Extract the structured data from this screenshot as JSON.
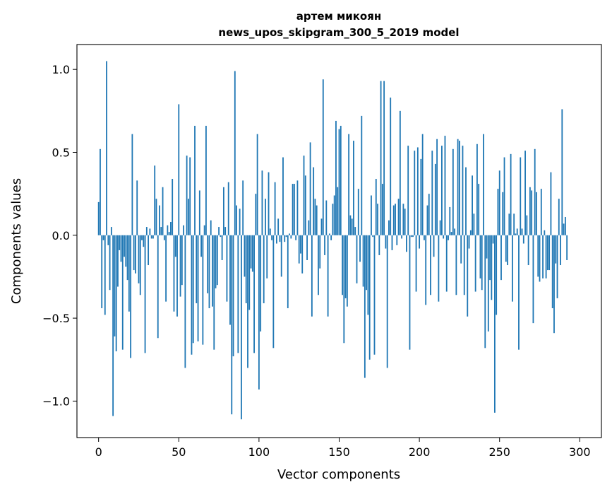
{
  "chart_data": {
    "type": "bar",
    "title": "артем микоян",
    "subtitle": "news_upos_skipgram_300_5_2019 model",
    "xlabel": "Vector components",
    "ylabel": "Components values",
    "xlim": [
      -13.5,
      313.5
    ],
    "ylim": [
      -1.22,
      1.15
    ],
    "x_ticks": [
      0,
      50,
      100,
      150,
      200,
      250,
      300
    ],
    "x_tick_labels": [
      "0",
      "50",
      "100",
      "150",
      "200",
      "250",
      "300"
    ],
    "y_ticks": [
      -1.0,
      -0.5,
      0.0,
      0.5,
      1.0
    ],
    "y_tick_labels": [
      "−1.0",
      "−0.5",
      "0.0",
      "0.5",
      "1.0"
    ],
    "grid": false,
    "bar_color": "#1f77b4",
    "values": [
      0.2,
      0.52,
      -0.44,
      -0.03,
      -0.48,
      1.05,
      -0.06,
      -0.33,
      0.05,
      -1.09,
      -0.61,
      -0.7,
      -0.31,
      -0.09,
      -0.16,
      -0.69,
      -0.13,
      -0.19,
      -0.27,
      -0.46,
      -0.74,
      0.61,
      -0.21,
      -0.23,
      0.33,
      -0.29,
      -0.36,
      -0.03,
      -0.07,
      -0.71,
      0.05,
      -0.18,
      0.04,
      -0.02,
      -0.02,
      0.42,
      0.22,
      -0.62,
      0.18,
      0.05,
      0.29,
      -0.03,
      -0.4,
      0.06,
      0.02,
      0.08,
      0.34,
      -0.46,
      -0.13,
      -0.49,
      0.79,
      -0.37,
      -0.3,
      0.06,
      -0.8,
      0.48,
      0.22,
      0.47,
      -0.72,
      -0.65,
      0.66,
      -0.41,
      -0.64,
      0.27,
      -0.13,
      -0.66,
      0.06,
      0.66,
      -0.35,
      -0.44,
      0.09,
      -0.43,
      -0.69,
      -0.32,
      -0.3,
      0.05,
      -0.01,
      -0.15,
      0.29,
      0.05,
      -0.4,
      0.32,
      -0.54,
      -1.08,
      -0.73,
      0.99,
      0.18,
      -0.71,
      0.16,
      -1.11,
      0.33,
      -0.25,
      -0.41,
      -0.8,
      -0.45,
      -0.2,
      -0.22,
      -0.71,
      0.25,
      0.61,
      -0.93,
      -0.58,
      0.39,
      -0.41,
      0.22,
      -0.26,
      0.38,
      0.04,
      -0.03,
      -0.68,
      0.32,
      -0.05,
      0.1,
      -0.04,
      -0.25,
      0.47,
      -0.04,
      -0.01,
      -0.44,
      0.01,
      -0.02,
      0.31,
      0.31,
      -0.03,
      0.33,
      -0.17,
      -0.11,
      -0.23,
      0.48,
      0.36,
      -0.15,
      0.09,
      0.56,
      -0.49,
      0.41,
      0.22,
      0.18,
      -0.36,
      -0.2,
      0.1,
      0.94,
      -0.12,
      0.21,
      -0.49,
      0.01,
      -0.03,
      0.19,
      0.24,
      0.69,
      0.29,
      0.64,
      0.66,
      -0.36,
      -0.65,
      -0.38,
      -0.43,
      0.61,
      0.12,
      0.1,
      0.57,
      0.05,
      -0.29,
      0.28,
      -0.16,
      0.72,
      -0.31,
      -0.86,
      -0.33,
      -0.48,
      -0.75,
      0.24,
      -0.01,
      -0.72,
      0.34,
      0.19,
      -0.12,
      0.93,
      0.31,
      0.93,
      -0.08,
      -0.8,
      0.09,
      0.83,
      -0.09,
      0.18,
      0.19,
      -0.06,
      0.22,
      0.75,
      -0.02,
      0.19,
      0.16,
      -0.1,
      0.54,
      -0.69,
      -0.01,
      -0.01,
      0.51,
      -0.34,
      0.53,
      -0.08,
      0.46,
      0.61,
      -0.03,
      -0.42,
      0.18,
      0.25,
      -0.36,
      0.51,
      -0.13,
      0.43,
      0.58,
      -0.4,
      0.09,
      0.54,
      -0.02,
      0.6,
      -0.34,
      -0.03,
      0.17,
      0.02,
      0.52,
      0.04,
      -0.36,
      0.58,
      0.57,
      -0.17,
      0.54,
      -0.36,
      0.41,
      -0.49,
      -0.08,
      0.03,
      0.36,
      0.13,
      -0.34,
      0.55,
      0.31,
      -0.26,
      -0.33,
      0.61,
      -0.68,
      -0.14,
      -0.58,
      -0.27,
      -0.39,
      -0.05,
      -1.07,
      -0.48,
      0.28,
      0.39,
      -0.27,
      0.26,
      0.47,
      -0.16,
      -0.18,
      0.13,
      0.49,
      -0.4,
      0.13,
      0.01,
      0.04,
      -0.69,
      0.47,
      0.04,
      -0.05,
      0.51,
      0.12,
      -0.18,
      0.29,
      0.27,
      -0.53,
      0.52,
      0.26,
      -0.25,
      -0.28,
      0.28,
      -0.26,
      0.03,
      -0.26,
      -0.21,
      -0.21,
      0.38,
      -0.44,
      -0.59,
      -0.17,
      -0.38,
      0.22,
      -0.18,
      0.76,
      0.07,
      0.11,
      -0.15
    ]
  }
}
